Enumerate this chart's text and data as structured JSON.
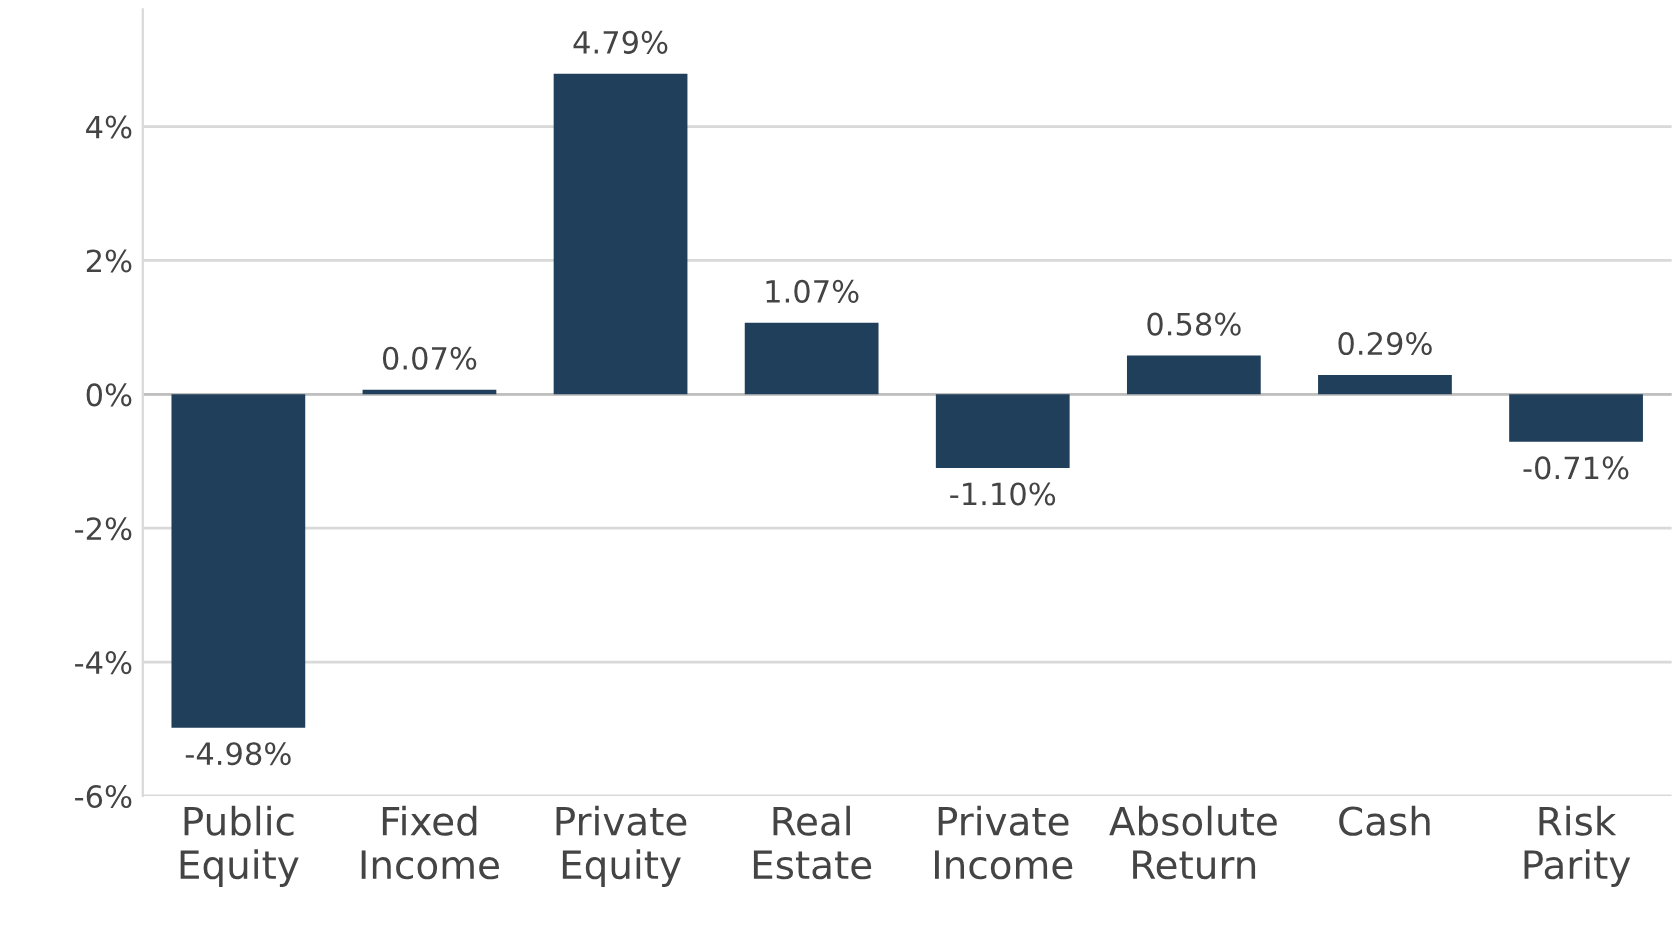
{
  "chart_data": {
    "type": "bar",
    "categories": [
      "Public\nEquity",
      "Fixed\nIncome",
      "Private\nEquity",
      "Real\nEstate",
      "Private\nIncome",
      "Absolute\nReturn",
      "Cash",
      "Risk\nParity"
    ],
    "values": [
      -4.98,
      0.07,
      4.79,
      1.07,
      -1.1,
      0.58,
      0.29,
      -0.71
    ],
    "value_labels": [
      "-4.98%",
      "0.07%",
      "4.79%",
      "1.07%",
      "-1.10%",
      "0.58%",
      "0.29%",
      "-0.71%"
    ],
    "color": "#203f5a",
    "ylim": [
      -6,
      5.75
    ],
    "yticks": [
      {
        "value": -6,
        "label": "-6%"
      },
      {
        "value": -4,
        "label": "-4%"
      },
      {
        "value": -2,
        "label": "-2%"
      },
      {
        "value": 0,
        "label": "0%"
      },
      {
        "value": 2,
        "label": "2%"
      },
      {
        "value": 4,
        "label": "4%"
      }
    ],
    "grid": "y"
  }
}
